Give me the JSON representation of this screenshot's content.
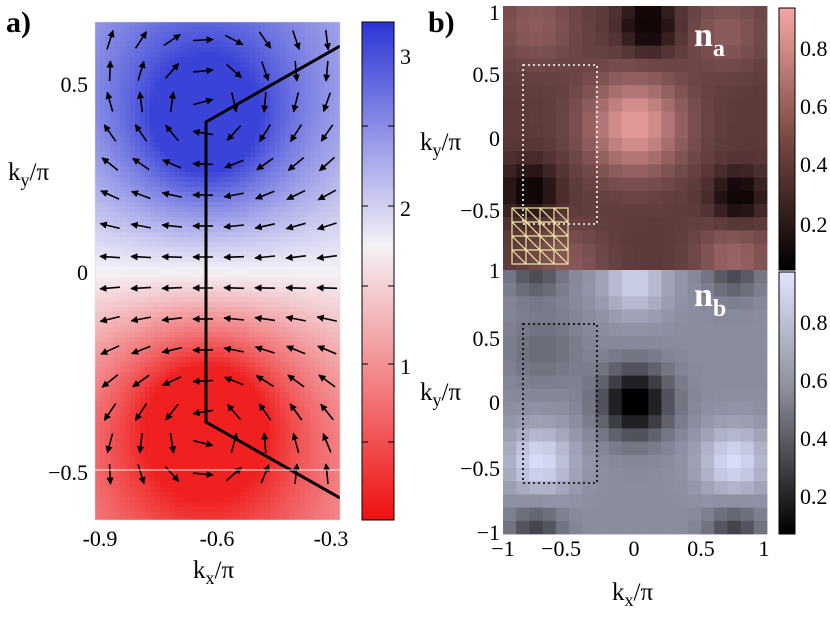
{
  "panels": {
    "a": {
      "panel_label": "a)",
      "xlabel_main": "k",
      "xlabel_sub": "x",
      "xlabel_suffix": "/π",
      "ylabel_main": "k",
      "ylabel_sub": "y",
      "ylabel_suffix": "/π",
      "x_ticks": [
        "-0.9",
        "-0.6",
        "-0.3"
      ],
      "y_ticks": [
        "0.5",
        "0",
        "−0.5"
      ],
      "colorbar_ticks": [
        "3",
        "2",
        "1"
      ]
    },
    "b": {
      "panel_label": "b)",
      "top_map_main": "n",
      "top_map_sub": "a",
      "bottom_map_main": "n",
      "bottom_map_sub": "b",
      "xlabel_main": "k",
      "xlabel_sub": "x",
      "xlabel_suffix": "/π",
      "ylabel_main": "k",
      "ylabel_sub": "y",
      "ylabel_suffix": "/π",
      "x_ticks": [
        "−1",
        "−0.5",
        "0",
        "0.5",
        "1"
      ],
      "top_y_ticks": [
        "1",
        "0.5",
        "0",
        "−0.5"
      ],
      "bottom_y_ticks": [
        "1",
        "0.5",
        "0",
        "−0.5",
        "−1"
      ],
      "top_colorbar_ticks": [
        "0.8",
        "0.6",
        "0.4",
        "0.2"
      ],
      "bottom_colorbar_ticks": [
        "0.8",
        "0.6",
        "0.4",
        "0.2"
      ]
    }
  },
  "colors": {
    "blue": "#3a43d8",
    "white": "#f4f1f6",
    "red": "#f02020",
    "na_dark": "#120606",
    "na_light": "#f3a3a3",
    "nb_dark": "#000000",
    "nb_light": "#dfe3ff"
  },
  "chart_data": [
    {
      "type": "heatmap",
      "panel": "a",
      "x_range": [
        -0.9,
        -0.3
      ],
      "y_range": [
        -0.6,
        0.6
      ],
      "color_range": [
        0,
        3.2
      ],
      "field": "phase with arrow vector field",
      "blue_max_at": [
        -0.62,
        0.4
      ],
      "red_max_at": [
        -0.62,
        -0.38
      ],
      "boundary_path": [
        [
          -0.3,
          0.57
        ],
        [
          -0.62,
          0.4
        ],
        [
          -0.62,
          -0.38
        ],
        [
          -0.3,
          -0.57
        ]
      ]
    },
    {
      "type": "heatmap",
      "panel": "b-top",
      "x_range": [
        -1,
        1
      ],
      "y_range": [
        -1,
        1
      ],
      "color_range": [
        0,
        0.93
      ],
      "peak_at": [
        0,
        0.1
      ],
      "minima_at": [
        [
          0,
          0.8
        ],
        [
          -0.8,
          -0.4
        ],
        [
          0.75,
          -0.5
        ]
      ]
    },
    {
      "type": "heatmap",
      "panel": "b-bottom",
      "x_range": [
        -1,
        1
      ],
      "y_range": [
        -1,
        1
      ],
      "color_range": [
        0,
        0.95
      ],
      "peak_at": [
        [
          -0.7,
          -0.45
        ],
        [
          0.75,
          -0.45
        ],
        [
          0,
          0.9
        ]
      ],
      "minima_at": [
        [
          0,
          0
        ],
        [
          -0.75,
          -1
        ],
        [
          0.75,
          -1
        ]
      ]
    }
  ]
}
